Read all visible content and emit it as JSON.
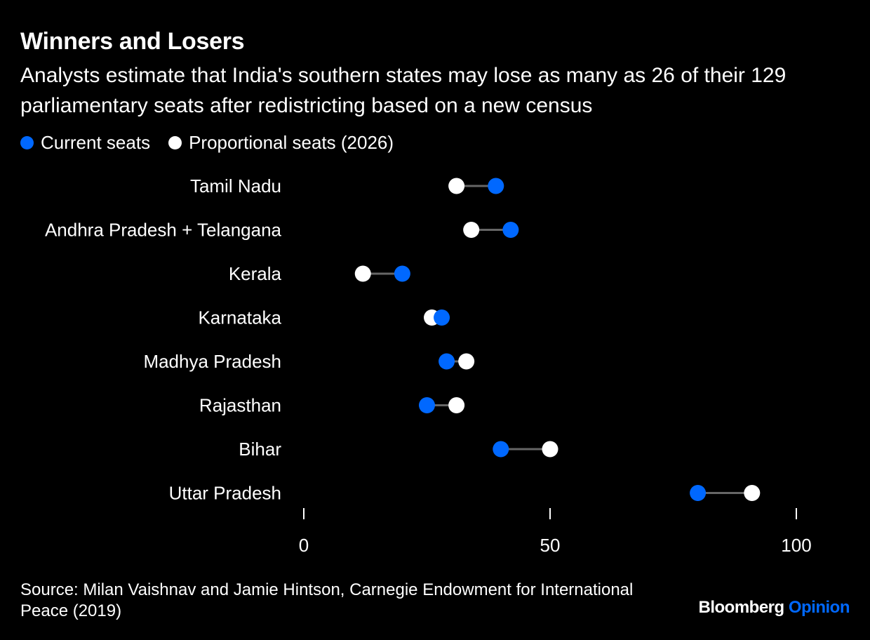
{
  "title": "Winners and Losers",
  "subtitle": "Analysts estimate that India's southern states may lose as many as 26 of their 129 parliamentary seats after redistricting based on a new census",
  "legend": {
    "current": "Current seats",
    "proportional": "Proportional seats (2026)"
  },
  "colors": {
    "background": "#000000",
    "current": "#0068ff",
    "proportional": "#ffffff",
    "connector": "#666666"
  },
  "chart_data": {
    "type": "dumbbell",
    "categories": [
      "Tamil Nadu",
      "Andhra Pradesh + Telangana",
      "Kerala",
      "Karnataka",
      "Madhya Pradesh",
      "Rajasthan",
      "Bihar",
      "Uttar Pradesh"
    ],
    "series": [
      {
        "name": "Current seats",
        "values": [
          39,
          42,
          20,
          28,
          29,
          25,
          40,
          80
        ]
      },
      {
        "name": "Proportional seats (2026)",
        "values": [
          31,
          34,
          12,
          26,
          33,
          31,
          50,
          91
        ]
      }
    ],
    "xlim": [
      0,
      100
    ],
    "xticks": [
      0,
      50,
      100
    ],
    "xtick_labels": [
      "0",
      "50",
      "100"
    ],
    "grid": false
  },
  "source": "Source: Milan Vaishnav and Jamie Hintson, Carnegie Endowment for International Peace (2019)",
  "brand": {
    "name": "Bloomberg",
    "section": "Opinion"
  }
}
